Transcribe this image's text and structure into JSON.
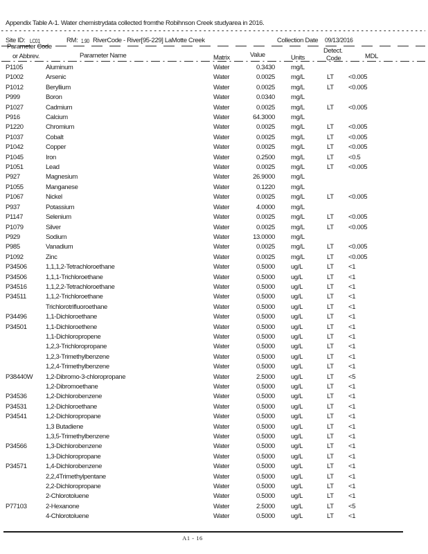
{
  "title": "Appendix Table A-1. Water chemistrydata collected fromthe Robihnson Creek studyarea in 2016.",
  "site_header": {
    "site_id_label": "Site ID:",
    "site_id_value": "LC01",
    "rm_label": "RM:",
    "rm_value": "1.90",
    "river_code": "RiverCode - River[95-229] LaMotte Creek",
    "collection_date_label": "Collection Date",
    "collection_date_value": "09/13/2016"
  },
  "table": {
    "columns": {
      "code_line1": "Parameter Code",
      "code_line2": "or Abbrev.",
      "name": "Parameter Name",
      "matrix": "Matrix",
      "value": "Value",
      "units": "Units",
      "detect_line1": "Detect.",
      "detect_line2": "Code",
      "mdl": "MDL"
    },
    "rows": [
      [
        "P1105",
        "Aluminum",
        "Water",
        "0.3430",
        "mg/L",
        "",
        ""
      ],
      [
        "P1002",
        "Arsenic",
        "Water",
        "0.0025",
        "mg/L",
        "LT",
        "<0.005"
      ],
      [
        "P1012",
        "Beryllium",
        "Water",
        "0.0025",
        "mg/L",
        "LT",
        "<0.005"
      ],
      [
        "P999",
        "Boron",
        "Water",
        "0.0340",
        "mg/L",
        "",
        ""
      ],
      [
        "P1027",
        "Cadmium",
        "Water",
        "0.0025",
        "mg/L",
        "LT",
        "<0.005"
      ],
      [
        "P916",
        "Calcium",
        "Water",
        "64.3000",
        "mg/L",
        "",
        ""
      ],
      [
        "P1220",
        "Chromium",
        "Water",
        "0.0025",
        "mg/L",
        "LT",
        "<0.005"
      ],
      [
        "P1037",
        "Cobalt",
        "Water",
        "0.0025",
        "mg/L",
        "LT",
        "<0.005"
      ],
      [
        "P1042",
        "Copper",
        "Water",
        "0.0025",
        "mg/L",
        "LT",
        "<0.005"
      ],
      [
        "P1045",
        "Iron",
        "Water",
        "0.2500",
        "mg/L",
        "LT",
        "<0.5"
      ],
      [
        "P1051",
        "Lead",
        "Water",
        "0.0025",
        "mg/L",
        "LT",
        "<0.005"
      ],
      [
        "P927",
        "Magnesium",
        "Water",
        "26.9000",
        "mg/L",
        "",
        ""
      ],
      [
        "P1055",
        "Manganese",
        "Water",
        "0.1220",
        "mg/L",
        "",
        ""
      ],
      [
        "P1067",
        "Nickel",
        "Water",
        "0.0025",
        "mg/L",
        "LT",
        "<0.005"
      ],
      [
        "P937",
        "Potassium",
        "Water",
        "4.0000",
        "mg/L",
        "",
        ""
      ],
      [
        "P1147",
        "Selenium",
        "Water",
        "0.0025",
        "mg/L",
        "LT",
        "<0.005"
      ],
      [
        "P1079",
        "Silver",
        "Water",
        "0.0025",
        "mg/L",
        "LT",
        "<0.005"
      ],
      [
        "P929",
        "Sodium",
        "Water",
        "13.0000",
        "mg/L",
        "",
        ""
      ],
      [
        "P985",
        "Vanadium",
        "Water",
        "0.0025",
        "mg/L",
        "LT",
        "<0.005"
      ],
      [
        "P1092",
        "Zinc",
        "Water",
        "0.0025",
        "mg/L",
        "LT",
        "<0.005"
      ],
      [
        "P34506",
        "1,1,1,2-Tetrachloroethane",
        "Water",
        "0.5000",
        "ug/L",
        "LT",
        "<1"
      ],
      [
        "P34506",
        "1,1,1-Trichloroethane",
        "Water",
        "0.5000",
        "ug/L",
        "LT",
        "<1"
      ],
      [
        "P34516",
        "1,1,2,2-Tetrachloroethane",
        "Water",
        "0.5000",
        "ug/L",
        "LT",
        "<1"
      ],
      [
        "P34511",
        "1,1,2-Trichloroethane",
        "Water",
        "0.5000",
        "ug/L",
        "LT",
        "<1"
      ],
      [
        "",
        "Trichlorotrifluoroethane",
        "Water",
        "0.5000",
        "ug/L",
        "LT",
        "<1"
      ],
      [
        "P34496",
        "1,1-Dichloroethane",
        "Water",
        "0.5000",
        "ug/L",
        "LT",
        "<1"
      ],
      [
        "P34501",
        "1,1-Dichloroethene",
        "Water",
        "0.5000",
        "ug/L",
        "LT",
        "<1"
      ],
      [
        "",
        "1,1-Dichloropropene",
        "Water",
        "0.5000",
        "ug/L",
        "LT",
        "<1"
      ],
      [
        "",
        "1,2,3-Trichloropropane",
        "Water",
        "0.5000",
        "ug/L",
        "LT",
        "<1"
      ],
      [
        "",
        "1,2,3-Trimethylbenzene",
        "Water",
        "0.5000",
        "ug/L",
        "LT",
        "<1"
      ],
      [
        "",
        "1,2,4-Trimethylbenzene",
        "Water",
        "0.5000",
        "ug/L",
        "LT",
        "<1"
      ],
      [
        "P38440W",
        "1,2-Dibromo-3-chloropropane",
        "Water",
        "2.5000",
        "ug/L",
        "LT",
        "<5"
      ],
      [
        "",
        "1,2-Dibromoethane",
        "Water",
        "0.5000",
        "ug/L",
        "LT",
        "<1"
      ],
      [
        "P34536",
        "1,2-Dichlorobenzene",
        "Water",
        "0.5000",
        "ug/L",
        "LT",
        "<1"
      ],
      [
        "P34531",
        "1,2-Dichloroethane",
        "Water",
        "0.5000",
        "ug/L",
        "LT",
        "<1"
      ],
      [
        "P34541",
        "1,2-Dichloropropane",
        "Water",
        "0.5000",
        "ug/L",
        "LT",
        "<1"
      ],
      [
        "",
        "1,3 Butadiene",
        "Water",
        "0.5000",
        "ug/L",
        "LT",
        "<1"
      ],
      [
        "",
        "1,3,5-Trimethylbenzene",
        "Water",
        "0.5000",
        "ug/L",
        "LT",
        "<1"
      ],
      [
        "P34566",
        "1,3-Dichlorobenzene",
        "Water",
        "0.5000",
        "ug/L",
        "LT",
        "<1"
      ],
      [
        "",
        "1,3-Dichloropropane",
        "Water",
        "0.5000",
        "ug/L",
        "LT",
        "<1"
      ],
      [
        "P34571",
        "1,4-Dichlorobenzene",
        "Water",
        "0.5000",
        "ug/L",
        "LT",
        "<1"
      ],
      [
        "",
        "2,2,4Trimethylpentane",
        "Water",
        "0.5000",
        "ug/L",
        "LT",
        "<1"
      ],
      [
        "",
        "2,2-Dichloropropane",
        "Water",
        "0.5000",
        "ug/L",
        "LT",
        "<1"
      ],
      [
        "",
        "2-Chlorotoluene",
        "Water",
        "0.5000",
        "ug/L",
        "LT",
        "<1"
      ],
      [
        "P77103",
        "2-Hexanone",
        "Water",
        "2.5000",
        "ug/L",
        "LT",
        "<5"
      ],
      [
        "",
        "4-Chlorotoluene",
        "Water",
        "0.5000",
        "ug/L",
        "LT",
        "<1"
      ]
    ]
  },
  "footer": {
    "page_number": "A1 - 16"
  }
}
